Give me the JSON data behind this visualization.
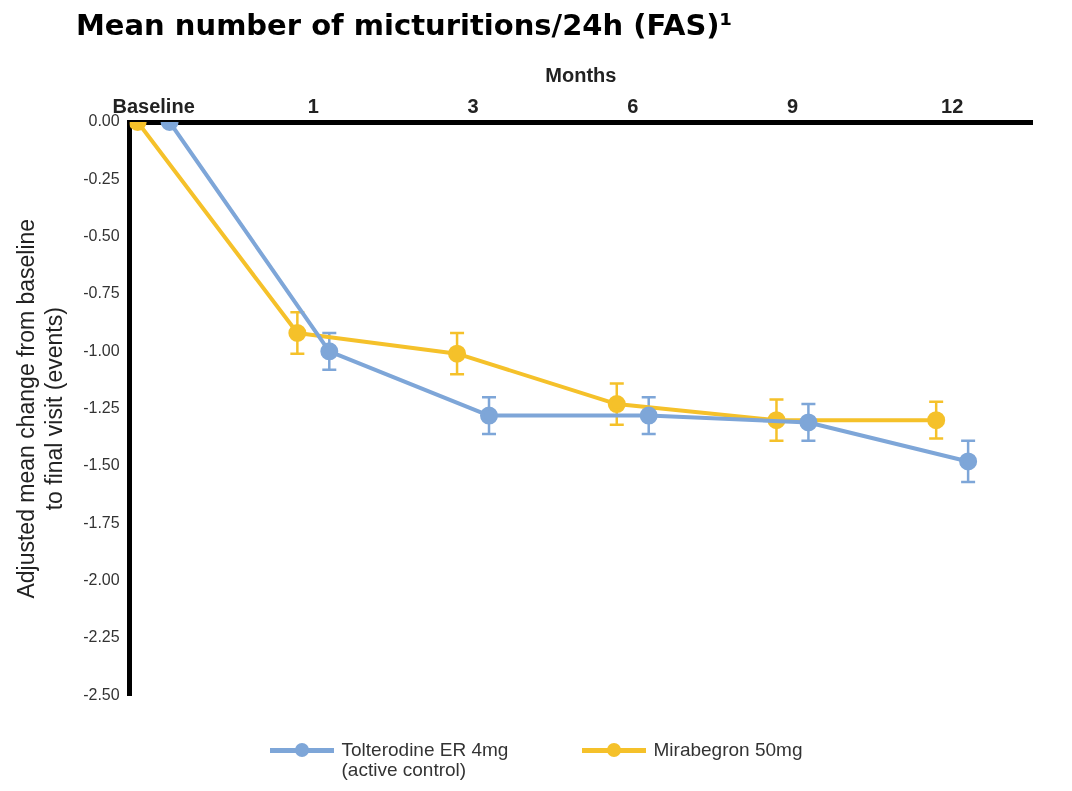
{
  "chart_data": {
    "type": "line",
    "title": "Mean number of micturitions/24h (FAS)¹",
    "xlabel": "Months",
    "ylabel": "Adjusted mean change from baseline to final visit (events)",
    "categories": [
      "Baseline",
      "1",
      "3",
      "6",
      "9",
      "12"
    ],
    "series": [
      {
        "name": "Tolterodine ER 4mg (active control)",
        "color": "#7ea6d8",
        "values": [
          0,
          -1.0,
          -1.28,
          -1.28,
          -1.31,
          -1.48
        ],
        "errors": [
          null,
          0.08,
          0.08,
          0.08,
          0.08,
          0.09
        ]
      },
      {
        "name": "Mirabegron 50mg",
        "color": "#f5c12a",
        "values": [
          0,
          -0.92,
          -1.01,
          -1.23,
          -1.3,
          -1.3
        ],
        "errors": [
          null,
          0.09,
          0.09,
          0.09,
          0.09,
          0.08
        ]
      }
    ],
    "ylim": [
      -2.5,
      0
    ],
    "yticks": [
      {
        "value": 0,
        "label": "0.00"
      },
      {
        "value": -0.25,
        "label": "-0.25"
      },
      {
        "value": -0.5,
        "label": "-0.50"
      },
      {
        "value": -0.75,
        "label": "-0.75"
      },
      {
        "value": -1,
        "label": "-1.00"
      },
      {
        "value": -1.25,
        "label": "-1.25"
      },
      {
        "value": -1.5,
        "label": "-1.50"
      },
      {
        "value": -1.75,
        "label": "-1.75"
      },
      {
        "value": -2,
        "label": "-2.00"
      },
      {
        "value": -2.25,
        "label": "-2.25"
      },
      {
        "value": -2.5,
        "label": "-2.50"
      }
    ],
    "grid": false,
    "legend": "bottom",
    "marker": "circle",
    "line_style": "solid"
  }
}
